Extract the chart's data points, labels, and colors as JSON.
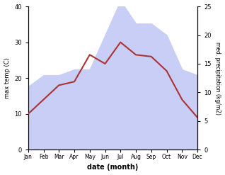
{
  "months": [
    "Jan",
    "Feb",
    "Mar",
    "Apr",
    "May",
    "Jun",
    "Jul",
    "Aug",
    "Sep",
    "Oct",
    "Nov",
    "Dec"
  ],
  "max_temp": [
    10.0,
    14.0,
    18.0,
    19.0,
    26.5,
    24.0,
    30.0,
    26.5,
    26.0,
    22.0,
    14.0,
    9.0
  ],
  "precipitation": [
    11.0,
    13.0,
    13.0,
    14.0,
    14.0,
    20.0,
    26.0,
    22.0,
    22.0,
    20.0,
    14.0,
    13.0
  ],
  "temp_color": "#aa3333",
  "precip_fill_color": "#c8cef5",
  "temp_ylim": [
    0,
    40
  ],
  "precip_ylim": [
    0,
    25
  ],
  "temp_yticks": [
    0,
    10,
    20,
    30,
    40
  ],
  "precip_yticks": [
    0,
    5,
    10,
    15,
    20,
    25
  ],
  "xlabel": "date (month)",
  "ylabel_left": "max temp (C)",
  "ylabel_right": "med. precipitation (kg/m2)",
  "background_color": "#ffffff"
}
